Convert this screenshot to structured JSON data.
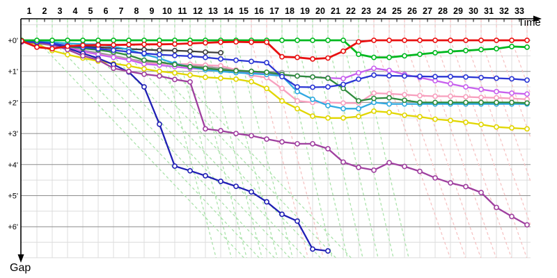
{
  "chart_data": {
    "type": "line",
    "x_axis_title": "Time",
    "y_axis_title": "Gap",
    "x_tick_labels": [
      "1",
      "2",
      "3",
      "4",
      "5",
      "6",
      "7",
      "8",
      "9",
      "10",
      "11",
      "12",
      "13",
      "14",
      "15",
      "16",
      "17",
      "18",
      "19",
      "20",
      "21",
      "22",
      "23",
      "24",
      "25",
      "26",
      "27",
      "28",
      "29",
      "30",
      "31",
      "32",
      "33"
    ],
    "y_tick_labels": [
      "+0'",
      "+1'",
      "+2'",
      "+3'",
      "+4'",
      "+5'",
      "+6'"
    ],
    "x_range_laps": [
      0,
      33
    ],
    "y_range_minutes": [
      -0.5,
      7
    ],
    "grid": "on",
    "legend": "none",
    "marker": "open-circle",
    "palette": {
      "major_grid": "#8c8c8c",
      "minor_grid": "#dcdcdc",
      "axis": "#000000",
      "marker_fill": "#ffffff",
      "lapping_green": "#abe3ab",
      "lapping_pink": "#f6c3c3"
    },
    "series": [
      {
        "name": "gray",
        "color": "#9a9a9a",
        "values": [
          0.04,
          0.1,
          0.16,
          0.25,
          0.33,
          0.4,
          0.5,
          0.6,
          0.69,
          0.74,
          0.78,
          0.82,
          0.85,
          0.9,
          0.96,
          1.0,
          1.03,
          1.04,
          null,
          null,
          null,
          null,
          null,
          null,
          null,
          null,
          null,
          null,
          null,
          null,
          null,
          null,
          null,
          null
        ]
      },
      {
        "name": "black",
        "color": "#3c3c3c",
        "values": [
          0.03,
          0.06,
          0.12,
          0.17,
          0.2,
          0.22,
          0.25,
          0.28,
          0.3,
          0.32,
          0.33,
          0.35,
          0.38,
          0.4,
          null,
          null,
          null,
          null,
          null,
          null,
          null,
          null,
          null,
          null,
          null,
          null,
          null,
          null,
          null,
          null,
          null,
          null,
          null,
          null
        ]
      },
      {
        "name": "pink",
        "color": "#f79fbe",
        "values": [
          0.04,
          0.08,
          0.15,
          0.28,
          0.38,
          0.45,
          0.53,
          0.62,
          0.74,
          0.75,
          0.76,
          0.77,
          0.8,
          0.82,
          0.95,
          1.13,
          1.2,
          1.55,
          1.95,
          2.0,
          2.0,
          2.02,
          2.02,
          1.7,
          1.72,
          1.75,
          1.78,
          1.8,
          1.8,
          1.82,
          1.84,
          1.85,
          1.87,
          1.9
        ]
      },
      {
        "name": "violet",
        "color": "#c860ee",
        "values": [
          0.04,
          0.06,
          0.12,
          0.22,
          0.34,
          0.46,
          0.55,
          0.63,
          0.76,
          0.8,
          0.85,
          0.9,
          0.93,
          0.97,
          1.0,
          1.03,
          1.07,
          1.12,
          1.15,
          1.18,
          1.21,
          1.23,
          1.05,
          0.9,
          0.97,
          1.1,
          1.2,
          1.3,
          1.4,
          1.5,
          1.58,
          1.65,
          1.7,
          1.73
        ]
      },
      {
        "name": "yellow",
        "color": "#e1d600",
        "values": [
          0.05,
          0.12,
          0.33,
          0.46,
          0.57,
          0.67,
          0.75,
          0.82,
          0.92,
          1.0,
          1.05,
          1.12,
          1.19,
          1.22,
          1.25,
          1.33,
          1.55,
          1.95,
          2.2,
          2.44,
          2.5,
          2.5,
          2.45,
          2.28,
          2.32,
          2.41,
          2.46,
          2.54,
          2.58,
          2.64,
          2.71,
          2.79,
          2.82,
          2.85
        ]
      },
      {
        "name": "cyan",
        "color": "#2fa9e1",
        "values": [
          0.02,
          0.04,
          0.06,
          0.1,
          0.12,
          0.13,
          0.2,
          0.3,
          0.45,
          0.58,
          0.75,
          0.85,
          0.95,
          1.0,
          1.04,
          1.07,
          1.1,
          1.15,
          1.65,
          1.9,
          2.1,
          2.2,
          2.2,
          2.0,
          2.05,
          2.05,
          2.05,
          2.05,
          2.05,
          2.05,
          2.05,
          2.05,
          2.05,
          2.05
        ]
      },
      {
        "name": "teal",
        "color": "#2e8b3c",
        "values": [
          0.03,
          0.08,
          0.14,
          0.2,
          0.26,
          0.31,
          0.38,
          0.48,
          0.64,
          0.7,
          0.78,
          0.85,
          0.9,
          0.95,
          0.98,
          1.0,
          1.03,
          1.1,
          1.15,
          1.18,
          1.22,
          1.55,
          1.95,
          1.87,
          1.85,
          1.93,
          2.0,
          2.0,
          2.0,
          2.0,
          2.0,
          2.0,
          2.0,
          2.02
        ]
      },
      {
        "name": "navy",
        "color": "#1f1fb4",
        "values": [
          0.05,
          0.08,
          0.12,
          0.25,
          0.42,
          0.58,
          0.78,
          1.02,
          1.5,
          2.7,
          4.05,
          4.2,
          4.36,
          4.54,
          4.7,
          4.88,
          5.2,
          5.6,
          5.82,
          6.72,
          6.78,
          null,
          null,
          null,
          null,
          null,
          null,
          null,
          null,
          null,
          null,
          null,
          null,
          null
        ]
      },
      {
        "name": "purple",
        "color": "#9f3f9f",
        "values": [
          0.05,
          0.06,
          0.15,
          0.3,
          0.5,
          0.63,
          0.9,
          1.0,
          1.09,
          1.15,
          1.26,
          1.34,
          2.85,
          2.91,
          3.0,
          3.07,
          3.18,
          3.27,
          3.33,
          3.33,
          3.49,
          3.92,
          4.09,
          4.18,
          3.94,
          4.06,
          4.22,
          4.43,
          4.59,
          4.71,
          4.9,
          5.38,
          5.67,
          5.94
        ]
      },
      {
        "name": "blue",
        "color": "#2a35d4",
        "values": [
          0.03,
          0.05,
          0.1,
          0.17,
          0.22,
          0.27,
          0.32,
          0.37,
          0.42,
          0.46,
          0.49,
          0.51,
          0.55,
          0.6,
          0.64,
          0.68,
          0.72,
          1.17,
          1.5,
          1.51,
          1.5,
          1.42,
          1.25,
          1.12,
          1.14,
          1.15,
          1.16,
          1.17,
          1.17,
          1.18,
          1.2,
          1.22,
          1.24,
          1.28
        ]
      },
      {
        "name": "green",
        "color": "#00b81f",
        "values": [
          0,
          0,
          0,
          0,
          0,
          0,
          0,
          0,
          0,
          0,
          0,
          0,
          0,
          0,
          0,
          0,
          0,
          0,
          0,
          0,
          0,
          0,
          0.45,
          0.55,
          0.55,
          0.5,
          0.45,
          0.4,
          0.36,
          0.33,
          0.3,
          0.27,
          0.2,
          0.22
        ]
      },
      {
        "name": "red",
        "color": "#e81010",
        "values": [
          0.02,
          0.22,
          0.27,
          0.19,
          0.16,
          0.15,
          0.15,
          0.14,
          0.13,
          0.13,
          0.12,
          0.1,
          0.08,
          0.06,
          0.05,
          0.06,
          0.06,
          0.53,
          0.55,
          0.6,
          0.57,
          0.35,
          0.05,
          0,
          0,
          0,
          0,
          0,
          0,
          0,
          0,
          0,
          0,
          0
        ]
      }
    ],
    "lapping_lines": [
      {
        "lap": 1,
        "kind": "green",
        "slope": 0.95
      },
      {
        "lap": 2,
        "kind": "green",
        "slope": 0.95
      },
      {
        "lap": 3,
        "kind": "green",
        "slope": 0.95
      },
      {
        "lap": 4,
        "kind": "green",
        "slope": 0.95
      },
      {
        "lap": 5,
        "kind": "green",
        "slope": 0.95
      },
      {
        "lap": 6,
        "kind": "green",
        "slope": 0.95
      },
      {
        "lap": 7,
        "kind": "green",
        "slope": 0.95
      },
      {
        "lap": 8,
        "kind": "green",
        "slope": 0.95
      },
      {
        "lap": 9,
        "kind": "green",
        "slope": 0.26
      },
      {
        "lap": 10,
        "kind": "green",
        "slope": 0.26
      },
      {
        "lap": 11,
        "kind": "green",
        "slope": 0.26
      },
      {
        "lap": 12,
        "kind": "green",
        "slope": 0.26
      },
      {
        "lap": 13,
        "kind": "green",
        "slope": 0.26
      },
      {
        "lap": 14,
        "kind": "green",
        "slope": 0.26
      },
      {
        "lap": 15,
        "kind": "pink",
        "slope": 0.26
      },
      {
        "lap": 16,
        "kind": "pink",
        "slope": 0.26
      },
      {
        "lap": 17,
        "kind": "green",
        "slope": 0.23
      },
      {
        "lap": 18,
        "kind": "green",
        "slope": 0.23
      },
      {
        "lap": 19,
        "kind": "green",
        "slope": 0.23
      },
      {
        "lap": 20,
        "kind": "green",
        "slope": 0.23
      },
      {
        "lap": 21,
        "kind": "green",
        "slope": 0.23
      },
      {
        "lap": 22,
        "kind": "green",
        "slope": 0.23
      },
      {
        "lap": 23,
        "kind": "pink",
        "slope": 0.35
      },
      {
        "lap": 24,
        "kind": "pink",
        "slope": 0.35
      },
      {
        "lap": 25,
        "kind": "pink",
        "slope": 0.35
      },
      {
        "lap": 26,
        "kind": "pink",
        "slope": 0.35
      },
      {
        "lap": 27,
        "kind": "pink",
        "slope": 0.35
      },
      {
        "lap": 28,
        "kind": "pink",
        "slope": 0.35
      },
      {
        "lap": 29,
        "kind": "pink",
        "slope": 0.35
      },
      {
        "lap": 30,
        "kind": "pink",
        "slope": 0.35
      },
      {
        "lap": 31,
        "kind": "pink",
        "slope": 0.35
      },
      {
        "lap": 32,
        "kind": "pink",
        "slope": 0.35
      },
      {
        "lap": 33,
        "kind": "pink",
        "slope": 0.35
      }
    ]
  }
}
